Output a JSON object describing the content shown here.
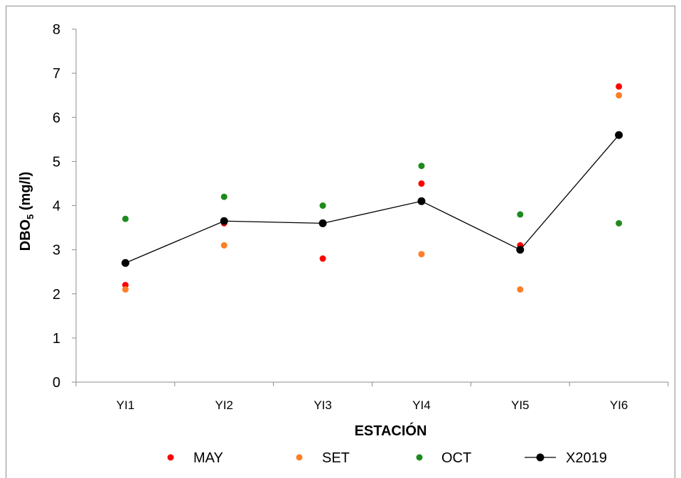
{
  "chart_data": {
    "type": "scatter",
    "categories": [
      "YI1",
      "YI2",
      "YI3",
      "YI4",
      "YI5",
      "YI6"
    ],
    "xlabel": "ESTACIÓN",
    "ylabel": "DBO",
    "ylabel_sub": "5",
    "ylabel_unit": " (mg/l)",
    "ylim": [
      0,
      8
    ],
    "yticks": [
      "0",
      "1",
      "2",
      "3",
      "4",
      "5",
      "6",
      "7",
      "8"
    ],
    "grid": false,
    "legend_position": "bottom",
    "series": [
      {
        "name": "MAY",
        "kind": "points",
        "color": "#ff0000",
        "values": [
          2.2,
          3.6,
          2.8,
          4.5,
          3.1,
          6.7
        ]
      },
      {
        "name": "SET",
        "kind": "points",
        "color": "#ff7f27",
        "values": [
          2.1,
          3.1,
          4.0,
          2.9,
          2.1,
          6.5
        ]
      },
      {
        "name": "OCT",
        "kind": "points",
        "color": "#1e8a1e",
        "values": [
          3.7,
          4.2,
          4.0,
          4.9,
          3.8,
          3.6
        ]
      },
      {
        "name": "X2019",
        "kind": "line",
        "color": "#000000",
        "values": [
          2.7,
          3.65,
          3.6,
          4.1,
          3.0,
          5.6
        ]
      }
    ]
  }
}
